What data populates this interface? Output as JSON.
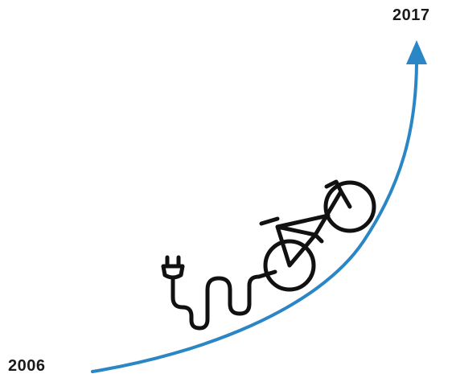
{
  "timeline": {
    "start_label": "2006",
    "end_label": "2017",
    "arrow_color": "#2b86c5",
    "line_color": "#111111"
  },
  "icons": {
    "illustration": "electric-bike-icon",
    "plug": "plug-icon",
    "cable": "cable-icon"
  }
}
